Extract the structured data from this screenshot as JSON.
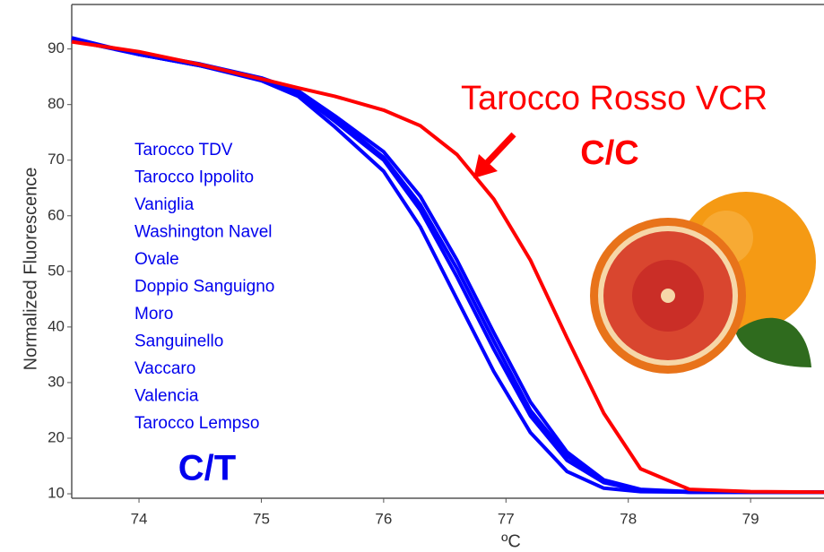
{
  "chart_data": {
    "type": "line",
    "x_label": "ºC",
    "y_label": "Normalized Fluorescence",
    "xlim": [
      73.45,
      79.6
    ],
    "ylim": [
      9.2,
      98
    ],
    "xticks": [
      74,
      75,
      76,
      77,
      78,
      79
    ],
    "yticks": [
      10,
      20,
      30,
      40,
      50,
      60,
      70,
      80,
      90
    ],
    "grid": false,
    "x": [
      73.45,
      74,
      74.5,
      75,
      75.3,
      75.6,
      76,
      76.3,
      76.6,
      76.9,
      77.2,
      77.5,
      77.8,
      78.1,
      78.5,
      79,
      79.6
    ],
    "series": [
      {
        "color": "#0000ff",
        "values": [
          92,
          89,
          87,
          84.3,
          81.5,
          76,
          68,
          58,
          45,
          32,
          21,
          14,
          11,
          10.4,
          10.3,
          10.3,
          10.3
        ]
      },
      {
        "color": "#0000ff",
        "values": [
          91.8,
          89,
          87,
          84.5,
          82,
          77,
          70,
          61,
          49,
          36,
          24,
          16,
          12,
          10.6,
          10.3,
          10.3,
          10.3
        ]
      },
      {
        "color": "#0000ff",
        "values": [
          91.6,
          89,
          87,
          84.6,
          82.2,
          77.5,
          70.5,
          62,
          50.5,
          37.5,
          25,
          16.8,
          12.2,
          10.7,
          10.3,
          10.3,
          10.3
        ]
      },
      {
        "color": "#0000ff",
        "values": [
          91.5,
          89.2,
          87.3,
          84.8,
          82.5,
          78,
          71.5,
          63.5,
          52,
          39,
          26.5,
          17.5,
          12.5,
          10.8,
          10.4,
          10.3,
          10.3
        ]
      },
      {
        "color": "#ff0000",
        "values": [
          91.3,
          89.5,
          87.2,
          84.6,
          83,
          81.5,
          79,
          76.2,
          71,
          63,
          52,
          38,
          24.5,
          14.5,
          10.8,
          10.4,
          10.3
        ]
      }
    ],
    "annotations": {
      "cultivars": [
        "Tarocco TDV",
        "Tarocco Ippolito",
        "Vaniglia",
        "Washington Navel",
        "Ovale",
        "Doppio Sanguigno",
        "Moro",
        "Sanguinello",
        "Vaccaro",
        "Valencia",
        "Tarocco Lempso"
      ],
      "blue_genotype": "C/T",
      "red_cultivar": "Tarocco Rosso VCR",
      "red_genotype": "C/C"
    }
  }
}
